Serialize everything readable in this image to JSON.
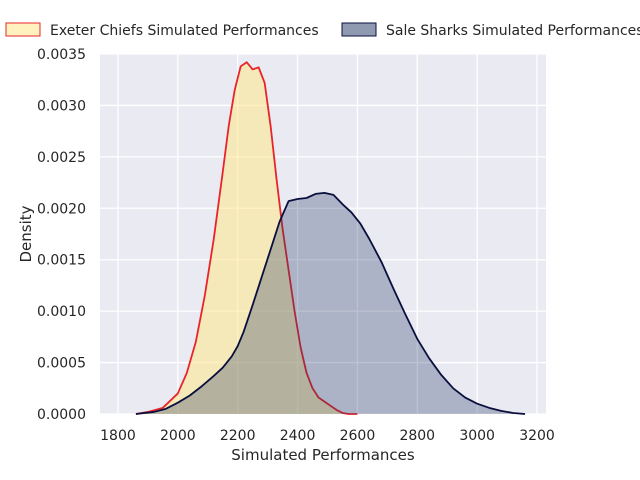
{
  "chart_data": {
    "type": "area",
    "xlabel": "Simulated Performances",
    "ylabel": "Density",
    "xlim": [
      1740,
      3230
    ],
    "ylim": [
      0,
      0.0035
    ],
    "xticks": [
      1800,
      2000,
      2200,
      2400,
      2600,
      2800,
      3000,
      3200
    ],
    "yticks": [
      0.0,
      0.0005,
      0.001,
      0.0015,
      0.002,
      0.0025,
      0.003,
      0.0035
    ],
    "ytick_labels": [
      "0.0000",
      "0.0005",
      "0.0010",
      "0.0015",
      "0.0020",
      "0.0025",
      "0.0030",
      "0.0035"
    ],
    "grid": true,
    "legend_position": "top",
    "series": [
      {
        "name": "Exeter Chiefs Simulated Performances",
        "fill": "#ffe680",
        "stroke": "#e8242a",
        "x": [
          1860,
          1900,
          1950,
          2000,
          2030,
          2060,
          2090,
          2120,
          2150,
          2170,
          2190,
          2210,
          2230,
          2250,
          2270,
          2290,
          2310,
          2330,
          2350,
          2370,
          2390,
          2410,
          2430,
          2450,
          2470,
          2490,
          2510,
          2530,
          2550,
          2570,
          2600
        ],
        "y": [
          0.0,
          2e-05,
          6e-05,
          0.0002,
          0.0004,
          0.0007,
          0.00115,
          0.0017,
          0.00235,
          0.0028,
          0.00315,
          0.00338,
          0.00342,
          0.00335,
          0.00337,
          0.00322,
          0.0028,
          0.00228,
          0.0018,
          0.0014,
          0.001,
          0.00065,
          0.0004,
          0.00025,
          0.00016,
          0.00012,
          8e-05,
          4e-05,
          1e-05,
          0.0,
          0.0
        ]
      },
      {
        "name": "Sale Sharks Simulated Performances",
        "fill": "#1f3563",
        "stroke": "#0a0f3d",
        "x": [
          1860,
          1920,
          1960,
          2000,
          2040,
          2080,
          2120,
          2150,
          2180,
          2200,
          2220,
          2250,
          2280,
          2310,
          2340,
          2370,
          2400,
          2430,
          2460,
          2490,
          2520,
          2550,
          2580,
          2610,
          2640,
          2680,
          2720,
          2760,
          2800,
          2840,
          2880,
          2920,
          2960,
          3000,
          3040,
          3080,
          3120,
          3160
        ],
        "y": [
          0.0,
          2e-05,
          5e-05,
          0.00011,
          0.00018,
          0.00027,
          0.00037,
          0.00045,
          0.00056,
          0.00066,
          0.0008,
          0.00106,
          0.00133,
          0.0016,
          0.00187,
          0.00207,
          0.00209,
          0.0021,
          0.00214,
          0.00215,
          0.00213,
          0.00204,
          0.00196,
          0.00185,
          0.0017,
          0.00148,
          0.00122,
          0.00097,
          0.00073,
          0.00054,
          0.00038,
          0.00025,
          0.00016,
          0.0001,
          6e-05,
          3e-05,
          1e-05,
          0.0
        ]
      }
    ]
  }
}
